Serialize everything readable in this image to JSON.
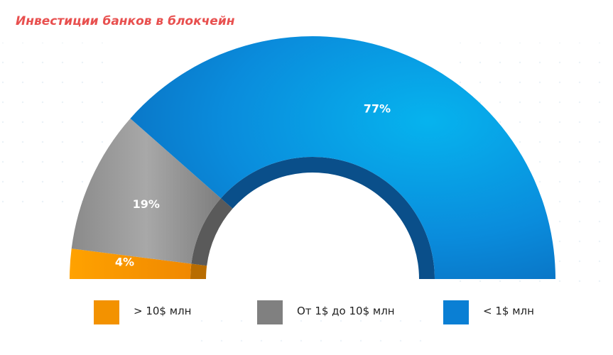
{
  "chart_data": {
    "type": "pie",
    "title": "Инвестиции банков в блокчейн",
    "categories": [
      "> 10$ млн",
      "От 1$ до 10$ млн",
      "< 1$ млн"
    ],
    "values": [
      4,
      19,
      77
    ],
    "value_labels": [
      "4%",
      "19%",
      "77%"
    ],
    "colors": [
      "#f39200",
      "#808080",
      "#0a7fd4"
    ],
    "legend": "bottom"
  }
}
